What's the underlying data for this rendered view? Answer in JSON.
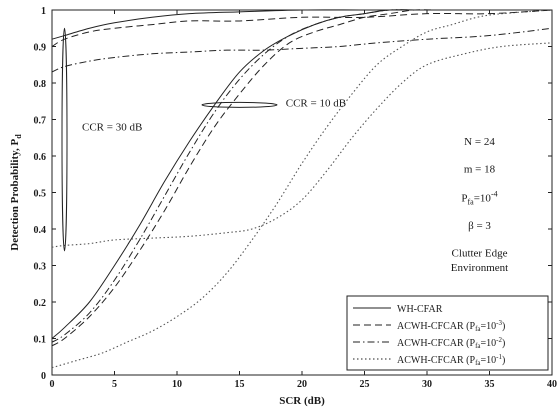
{
  "chart_data": {
    "type": "line",
    "xlabel": "SCR (dB)",
    "ylabel": "Detection Probability, P",
    "ylabel_sub": "d",
    "xlim": [
      0,
      40
    ],
    "ylim": [
      0,
      1
    ],
    "xticks": [
      0,
      5,
      10,
      15,
      20,
      25,
      30,
      35,
      40
    ],
    "yticks": [
      0,
      0.1,
      0.2,
      0.3,
      0.4,
      0.5,
      0.6,
      0.7,
      0.8,
      0.9,
      1
    ],
    "grid": false,
    "legend_position": "bottom-right",
    "series": [
      {
        "name": "WH-CFAR",
        "style": "solid",
        "group": "CCR = 10 dB",
        "x": [
          0,
          1,
          3,
          5,
          7,
          9,
          11,
          13,
          15,
          17,
          19,
          21,
          23,
          25,
          27,
          30,
          35,
          40
        ],
        "y": [
          0.1,
          0.13,
          0.2,
          0.3,
          0.41,
          0.53,
          0.64,
          0.74,
          0.83,
          0.89,
          0.93,
          0.96,
          0.98,
          0.99,
          1.0,
          1.0,
          1.0,
          1.0
        ]
      },
      {
        "name": "ACWH-CFCAR (P_fa=10^-3)",
        "style": "dashed",
        "group": "CCR = 10 dB",
        "x": [
          0,
          1,
          3,
          5,
          7,
          9,
          11,
          13,
          15,
          17,
          19,
          21,
          23,
          25,
          27,
          29,
          31,
          33,
          35,
          40
        ],
        "y": [
          0.08,
          0.1,
          0.16,
          0.24,
          0.34,
          0.45,
          0.57,
          0.68,
          0.77,
          0.85,
          0.91,
          0.94,
          0.96,
          0.98,
          0.99,
          1.0,
          1.0,
          1.0,
          1.0,
          1.0
        ]
      },
      {
        "name": "ACWH-CFCAR (P_fa=10^-2)",
        "style": "dashdot",
        "group": "CCR = 10 dB",
        "x": [
          0,
          1,
          3,
          5,
          7,
          9,
          11,
          13,
          15,
          17,
          19,
          21,
          23,
          25,
          27,
          29,
          31,
          35,
          40
        ],
        "y": [
          0.09,
          0.11,
          0.17,
          0.26,
          0.37,
          0.49,
          0.61,
          0.72,
          0.81,
          0.88,
          0.93,
          0.96,
          0.98,
          0.99,
          1.0,
          1.0,
          1.0,
          1.0,
          1.0
        ]
      },
      {
        "name": "ACWH-CFCAR (P_fa=10^-1)",
        "style": "dotted",
        "group": "CCR = 10 dB",
        "x": [
          0,
          2,
          4,
          6,
          8,
          10,
          12,
          14,
          16,
          18,
          20,
          22,
          24,
          26,
          28,
          30,
          32,
          34,
          36,
          40
        ],
        "y": [
          0.02,
          0.04,
          0.06,
          0.09,
          0.12,
          0.16,
          0.21,
          0.28,
          0.37,
          0.47,
          0.58,
          0.68,
          0.77,
          0.85,
          0.9,
          0.94,
          0.96,
          0.98,
          0.99,
          1.0
        ]
      },
      {
        "name": "WH-CFAR",
        "style": "solid",
        "group": "CCR = 30 dB",
        "x": [
          0,
          1,
          3,
          5,
          8,
          11,
          15,
          20,
          25,
          30,
          35,
          40
        ],
        "y": [
          0.92,
          0.93,
          0.95,
          0.965,
          0.98,
          0.99,
          0.995,
          1.0,
          1.0,
          1.0,
          1.0,
          1.0
        ]
      },
      {
        "name": "ACWH-CFCAR (P_fa=10^-3)",
        "style": "dashed",
        "group": "CCR = 30 dB",
        "x": [
          0,
          1,
          3,
          5,
          8,
          11,
          15,
          20,
          25,
          30,
          35,
          40
        ],
        "y": [
          0.9,
          0.92,
          0.94,
          0.95,
          0.96,
          0.97,
          0.97,
          0.98,
          0.98,
          0.99,
          0.99,
          1.0
        ]
      },
      {
        "name": "ACWH-CFCAR (P_fa=10^-2)",
        "style": "dashdot",
        "group": "CCR = 30 dB",
        "x": [
          0,
          1,
          3,
          5,
          8,
          11,
          14,
          17,
          20,
          23,
          26,
          30,
          35,
          40
        ],
        "y": [
          0.83,
          0.845,
          0.86,
          0.87,
          0.88,
          0.885,
          0.89,
          0.89,
          0.895,
          0.9,
          0.91,
          0.92,
          0.93,
          0.95
        ]
      },
      {
        "name": "ACWH-CFCAR (P_fa=10^-1)",
        "style": "dotted",
        "group": "CCR = 30 dB",
        "x": [
          0,
          1,
          3,
          5,
          8,
          11,
          14,
          16,
          18,
          20,
          22,
          24,
          26,
          28,
          30,
          33,
          36,
          40
        ],
        "y": [
          0.35,
          0.355,
          0.36,
          0.37,
          0.375,
          0.38,
          0.39,
          0.4,
          0.43,
          0.48,
          0.56,
          0.65,
          0.73,
          0.8,
          0.85,
          0.88,
          0.9,
          0.91
        ]
      }
    ],
    "annotations": {
      "ccr30": "CCR = 30 dB",
      "ccr10": "CCR = 10 dB",
      "params": {
        "n": "N = 24",
        "m": "m = 18",
        "pfa_main": "P",
        "pfa_sub": "fa",
        "pfa_rest": "=10",
        "pfa_exp": "-4",
        "beta": "β = 3",
        "env_line1": "Clutter Edge",
        "env_line2": "Environment"
      }
    },
    "legend": [
      {
        "label": "WH-CFAR",
        "style": "solid"
      },
      {
        "label_pre": "ACWH-CFCAR (P",
        "label_sub": "fa",
        "label_mid": "=10",
        "label_exp": "-3",
        "label_post": ")",
        "style": "dashed"
      },
      {
        "label_pre": "ACWH-CFCAR (P",
        "label_sub": "fa",
        "label_mid": "=10",
        "label_exp": "-2",
        "label_post": ")",
        "style": "dashdot"
      },
      {
        "label_pre": "ACWH-CFCAR (P",
        "label_sub": "fa",
        "label_mid": "=10",
        "label_exp": "-1",
        "label_post": ")",
        "style": "dotted"
      }
    ]
  }
}
